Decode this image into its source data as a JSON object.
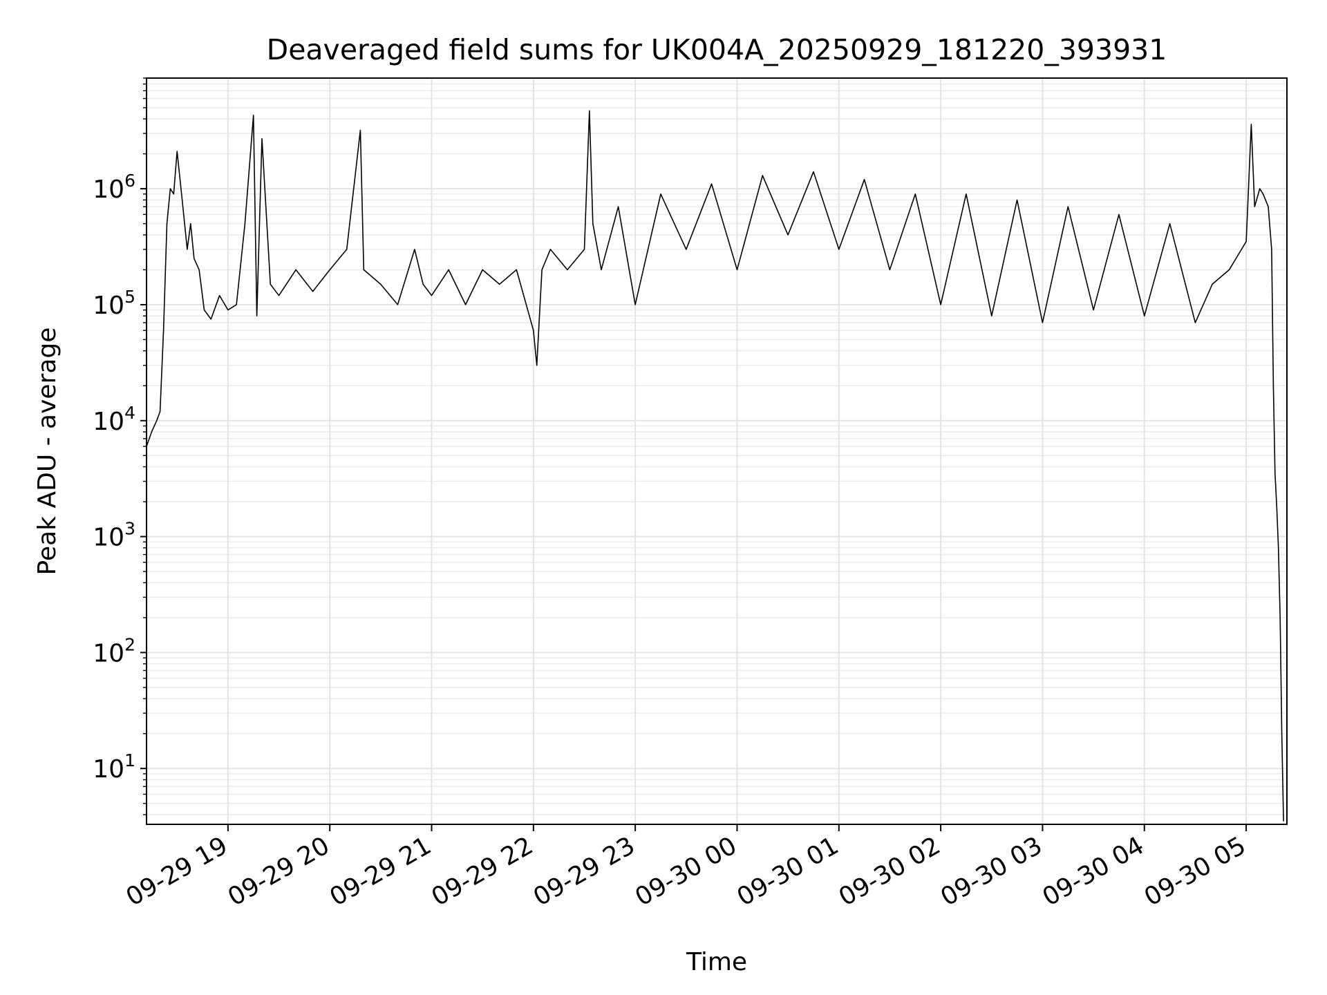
{
  "chart_data": {
    "type": "line",
    "title": "Deaveraged field sums for UK004A_20250929_181220_393931",
    "xlabel": "Time",
    "ylabel": "Peak ADU - average",
    "yscale": "log",
    "ylim": [
      3.3,
      9000000
    ],
    "xlim": [
      "2025-09-29 18:12",
      "2025-09-30 05:24"
    ],
    "grid": true,
    "line_color": "#000000",
    "x_ticks": [
      {
        "time": "2025-09-29 19:00",
        "label": "09-29 19"
      },
      {
        "time": "2025-09-29 20:00",
        "label": "09-29 20"
      },
      {
        "time": "2025-09-29 21:00",
        "label": "09-29 21"
      },
      {
        "time": "2025-09-29 22:00",
        "label": "09-29 22"
      },
      {
        "time": "2025-09-29 23:00",
        "label": "09-29 23"
      },
      {
        "time": "2025-09-30 00:00",
        "label": "09-30 00"
      },
      {
        "time": "2025-09-30 01:00",
        "label": "09-30 01"
      },
      {
        "time": "2025-09-30 02:00",
        "label": "09-30 02"
      },
      {
        "time": "2025-09-30 03:00",
        "label": "09-30 03"
      },
      {
        "time": "2025-09-30 04:00",
        "label": "09-30 04"
      },
      {
        "time": "2025-09-30 05:00",
        "label": "09-30 05"
      }
    ],
    "y_ticks": [
      {
        "value": 10,
        "base": "10",
        "exp": "1"
      },
      {
        "value": 100,
        "base": "10",
        "exp": "2"
      },
      {
        "value": 1000,
        "base": "10",
        "exp": "3"
      },
      {
        "value": 10000,
        "base": "10",
        "exp": "4"
      },
      {
        "value": 100000,
        "base": "10",
        "exp": "5"
      },
      {
        "value": 1000000,
        "base": "10",
        "exp": "6"
      }
    ],
    "series": [
      {
        "x": [
          "2025-09-29 18:12",
          "2025-09-29 18:15",
          "2025-09-29 18:18",
          "2025-09-29 18:20",
          "2025-09-29 18:22",
          "2025-09-29 18:24",
          "2025-09-29 18:26",
          "2025-09-29 18:28",
          "2025-09-29 18:30",
          "2025-09-29 18:33",
          "2025-09-29 18:36",
          "2025-09-29 18:38",
          "2025-09-29 18:40",
          "2025-09-29 18:43",
          "2025-09-29 18:46",
          "2025-09-29 18:50",
          "2025-09-29 18:55",
          "2025-09-29 19:00",
          "2025-09-29 19:05",
          "2025-09-29 19:10",
          "2025-09-29 19:15",
          "2025-09-29 19:17",
          "2025-09-29 19:20",
          "2025-09-29 19:25",
          "2025-09-29 19:30",
          "2025-09-29 19:40",
          "2025-09-29 19:50",
          "2025-09-29 20:00",
          "2025-09-29 20:10",
          "2025-09-29 20:18",
          "2025-09-29 20:20",
          "2025-09-29 20:30",
          "2025-09-29 20:40",
          "2025-09-29 20:50",
          "2025-09-29 20:55",
          "2025-09-29 21:00",
          "2025-09-29 21:10",
          "2025-09-29 21:20",
          "2025-09-29 21:30",
          "2025-09-29 21:40",
          "2025-09-29 21:50",
          "2025-09-29 22:00",
          "2025-09-29 22:02",
          "2025-09-29 22:05",
          "2025-09-29 22:10",
          "2025-09-29 22:20",
          "2025-09-29 22:30",
          "2025-09-29 22:33",
          "2025-09-29 22:35",
          "2025-09-29 22:40",
          "2025-09-29 22:50",
          "2025-09-29 23:00",
          "2025-09-29 23:15",
          "2025-09-29 23:30",
          "2025-09-29 23:45",
          "2025-09-30 00:00",
          "2025-09-30 00:15",
          "2025-09-30 00:30",
          "2025-09-30 00:45",
          "2025-09-30 01:00",
          "2025-09-30 01:15",
          "2025-09-30 01:30",
          "2025-09-30 01:45",
          "2025-09-30 02:00",
          "2025-09-30 02:15",
          "2025-09-30 02:30",
          "2025-09-30 02:45",
          "2025-09-30 03:00",
          "2025-09-30 03:15",
          "2025-09-30 03:30",
          "2025-09-30 03:45",
          "2025-09-30 04:00",
          "2025-09-30 04:15",
          "2025-09-30 04:30",
          "2025-09-30 04:40",
          "2025-09-30 04:50",
          "2025-09-30 05:00",
          "2025-09-30 05:03",
          "2025-09-30 05:05",
          "2025-09-30 05:08",
          "2025-09-30 05:10",
          "2025-09-30 05:13",
          "2025-09-30 05:15",
          "2025-09-30 05:16",
          "2025-09-30 05:17",
          "2025-09-30 05:18",
          "2025-09-30 05:19",
          "2025-09-30 05:20",
          "2025-09-30 05:21",
          "2025-09-30 05:22"
        ],
        "y": [
          6000,
          8000,
          10000,
          12000,
          60000,
          500000,
          1000000,
          900000,
          2100000,
          800000,
          300000,
          500000,
          250000,
          200000,
          90000,
          75000,
          120000,
          90000,
          100000,
          500000,
          4300000,
          80000,
          2700000,
          150000,
          120000,
          200000,
          130000,
          200000,
          300000,
          3200000,
          200000,
          150000,
          100000,
          300000,
          150000,
          120000,
          200000,
          100000,
          200000,
          150000,
          200000,
          60000,
          30000,
          200000,
          300000,
          200000,
          300000,
          4700000,
          500000,
          200000,
          700000,
          100000,
          900000,
          300000,
          1100000,
          200000,
          1300000,
          400000,
          1400000,
          300000,
          1200000,
          200000,
          900000,
          100000,
          900000,
          80000,
          800000,
          70000,
          700000,
          90000,
          600000,
          80000,
          500000,
          70000,
          150000,
          200000,
          350000,
          3600000,
          700000,
          1000000,
          900000,
          700000,
          300000,
          20000,
          3500,
          1800,
          800,
          200,
          20,
          3.5
        ]
      }
    ]
  }
}
